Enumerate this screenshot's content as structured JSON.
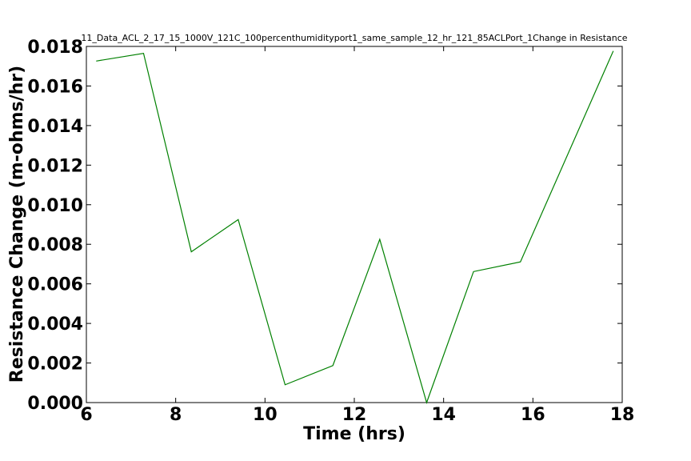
{
  "chart_data": {
    "type": "line",
    "title": "11_Data_ACL_2_17_15_1000V_121C_100percenthumidityport1_same_sample_12_hr_121_85ACLPort_1Change in Resistance",
    "xlabel": "Time (hrs)",
    "ylabel": "Resistance Change (m-ohms/hr)",
    "xlim": [
      6,
      18
    ],
    "ylim": [
      0.0,
      0.018
    ],
    "x_ticks": [
      6,
      8,
      10,
      12,
      14,
      16,
      18
    ],
    "x_tick_labels": [
      "6",
      "8",
      "10",
      "12",
      "14",
      "16",
      "18"
    ],
    "y_ticks": [
      0.0,
      0.002,
      0.004,
      0.006,
      0.008,
      0.01,
      0.012,
      0.014,
      0.016,
      0.018
    ],
    "y_tick_labels": [
      "0.000",
      "0.002",
      "0.004",
      "0.006",
      "0.008",
      "0.010",
      "0.012",
      "0.014",
      "0.016",
      "0.018"
    ],
    "grid": false,
    "series": [
      {
        "color": "#008000",
        "x": [
          6.22,
          7.28,
          8.35,
          9.4,
          10.45,
          11.52,
          12.57,
          13.62,
          14.67,
          15.72,
          17.8
        ],
        "y": [
          0.01726,
          0.01765,
          0.00762,
          0.00925,
          0.0009,
          0.00187,
          0.00825,
          0.0,
          0.00662,
          0.00711,
          0.01777
        ]
      }
    ]
  }
}
